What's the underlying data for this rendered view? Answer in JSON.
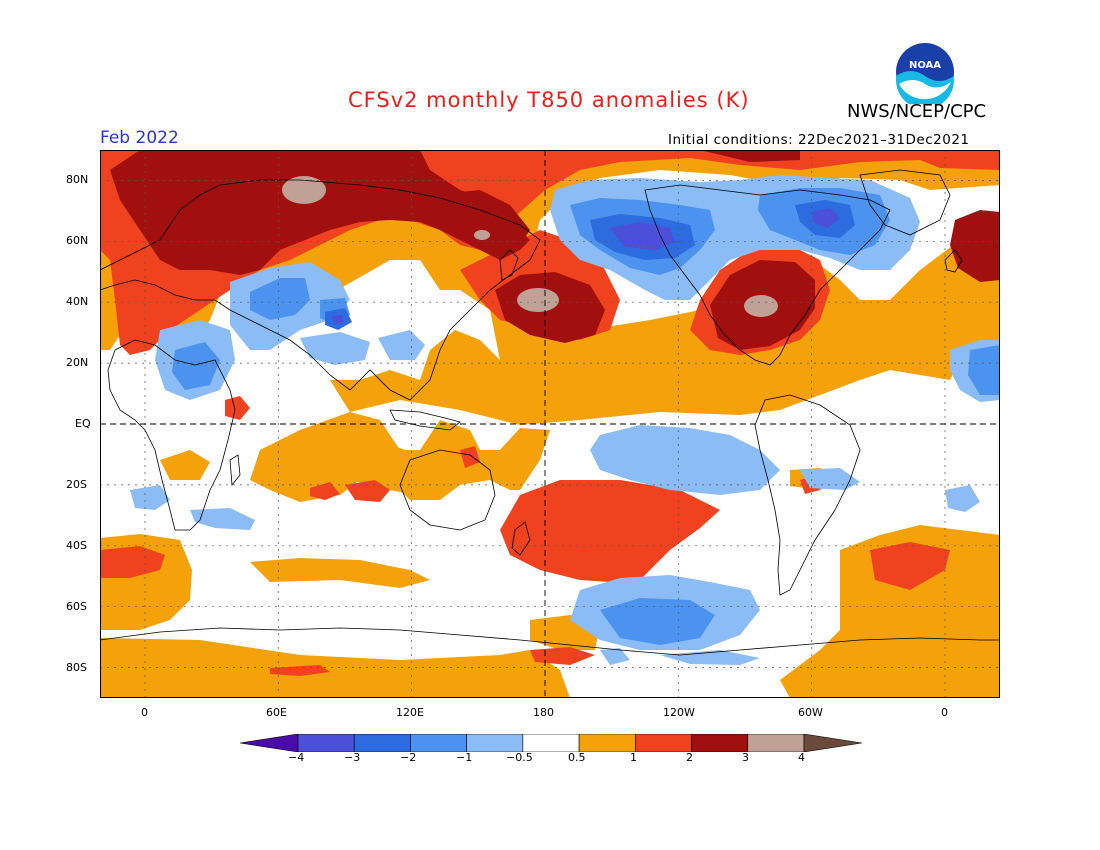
{
  "title": "CFSv2 monthly T850 anomalies (K)",
  "organization": "NWS/NCEP/CPC",
  "logo_text": "NOAA",
  "valid_month": "Feb 2022",
  "initial_conditions": "Initial conditions: 22Dec2021–31Dec2021",
  "y_axis_labels": [
    "80N",
    "60N",
    "40N",
    "20N",
    "EQ",
    "20S",
    "40S",
    "60S",
    "80S"
  ],
  "x_axis_labels": [
    "0",
    "60E",
    "120E",
    "180",
    "120W",
    "60W",
    "0"
  ],
  "colorbar": {
    "ticks": [
      "−4",
      "−3",
      "−2",
      "−1",
      "−0.5",
      "0.5",
      "1",
      "2",
      "3",
      "4"
    ],
    "colors": [
      "#4a0ca8",
      "#4b4fd9",
      "#2c6be0",
      "#4b93ee",
      "#8cbcf5",
      "#ffffff",
      "#f5a10a",
      "#f0421e",
      "#a10f0f",
      "#c0a195",
      "#6b4a3c"
    ]
  }
}
